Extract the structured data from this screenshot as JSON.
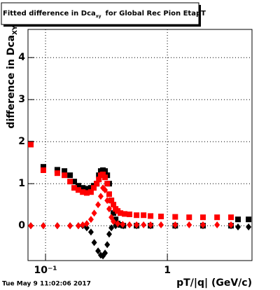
{
  "chart_data": {
    "type": "scatter",
    "title": "Fitted difference in Dca",
    "title_sub": "xy",
    "title_rest": "for Global Rec Pion EtapT",
    "y_label": "difference in Dca",
    "y_label_sub": "XY",
    "x_label": "pT/|q| (GeV/c)",
    "timestamp": "Tue May  9 11:02:06 2017",
    "log_x": true,
    "grid": true,
    "xlim": [
      0.0718,
      4.95
    ],
    "ylim": [
      -0.83,
      4.67
    ],
    "xticks": [
      {
        "value": 0.1,
        "label": "10⁻¹"
      },
      1
    ],
    "yticks": [
      0,
      1,
      2,
      3,
      4
    ],
    "series": [
      {
        "name": "black-squares",
        "color": "#000000",
        "marker": "square",
        "x": [
          0.0757,
          0.096,
          0.125,
          0.143,
          0.159,
          0.172,
          0.186,
          0.202,
          0.218,
          0.236,
          0.249,
          0.263,
          0.274,
          0.284,
          0.296,
          0.308,
          0.321,
          0.333,
          0.347,
          0.361,
          0.376,
          0.391,
          0.412,
          0.435,
          0.559,
          0.728,
          1.16,
          1.96,
          3.33,
          3.8,
          4.64
        ],
        "values": [
          1.95,
          1.4,
          1.33,
          1.3,
          1.2,
          1.05,
          0.95,
          0.9,
          0.88,
          0.9,
          0.95,
          1.0,
          1.2,
          1.3,
          1.32,
          1.3,
          1.2,
          1.0,
          0.6,
          0.3,
          0.15,
          0.05,
          0.02,
          0.0,
          0.0,
          0.0,
          0.0,
          0.0,
          0.0,
          0.15,
          0.15
        ]
      },
      {
        "name": "black-diamonds",
        "color": "#000000",
        "marker": "diamond",
        "x": [
          0.0757,
          0.096,
          0.125,
          0.159,
          0.186,
          0.202,
          0.218,
          0.236,
          0.251,
          0.27,
          0.284,
          0.296,
          0.308,
          0.321,
          0.333,
          0.347,
          0.376,
          0.435,
          0.559,
          0.728,
          1.16,
          1.96,
          3.33,
          3.8,
          4.64
        ],
        "values": [
          0.0,
          0.0,
          0.0,
          0.0,
          0.0,
          0.0,
          -0.05,
          -0.15,
          -0.4,
          -0.6,
          -0.7,
          -0.72,
          -0.65,
          -0.45,
          -0.2,
          -0.05,
          0.0,
          0.0,
          0.0,
          0.0,
          0.0,
          0.0,
          0.0,
          -0.03,
          -0.03
        ]
      },
      {
        "name": "red-squares",
        "color": "#ff0000",
        "marker": "square",
        "x": [
          0.0757,
          0.096,
          0.125,
          0.143,
          0.159,
          0.172,
          0.186,
          0.202,
          0.218,
          0.236,
          0.249,
          0.263,
          0.274,
          0.284,
          0.296,
          0.308,
          0.321,
          0.333,
          0.347,
          0.361,
          0.376,
          0.391,
          0.412,
          0.446,
          0.489,
          0.559,
          0.638,
          0.728,
          0.887,
          1.16,
          1.51,
          1.96,
          2.56,
          3.33
        ],
        "values": [
          1.93,
          1.32,
          1.25,
          1.2,
          1.05,
          0.9,
          0.85,
          0.8,
          0.78,
          0.8,
          0.9,
          1.0,
          1.1,
          1.2,
          1.22,
          1.15,
          1.0,
          0.75,
          0.6,
          0.5,
          0.4,
          0.35,
          0.3,
          0.28,
          0.27,
          0.25,
          0.25,
          0.23,
          0.22,
          0.21,
          0.2,
          0.2,
          0.2,
          0.2
        ]
      },
      {
        "name": "red-diamonds",
        "color": "#ff0000",
        "marker": "diamond",
        "x": [
          0.0757,
          0.096,
          0.125,
          0.159,
          0.186,
          0.202,
          0.218,
          0.236,
          0.251,
          0.27,
          0.284,
          0.296,
          0.308,
          0.321,
          0.333,
          0.347,
          0.361,
          0.391,
          0.43,
          0.489,
          0.559,
          0.638,
          0.728,
          0.887,
          1.16,
          1.51,
          1.96,
          2.56,
          3.33
        ],
        "values": [
          0.0,
          0.0,
          0.0,
          0.0,
          0.0,
          0.02,
          0.05,
          0.15,
          0.3,
          0.5,
          0.7,
          0.9,
          0.85,
          0.6,
          0.4,
          0.2,
          0.1,
          0.05,
          0.03,
          0.02,
          0.02,
          0.02,
          0.02,
          0.02,
          0.02,
          0.02,
          0.02,
          0.02,
          0.02
        ]
      }
    ]
  }
}
